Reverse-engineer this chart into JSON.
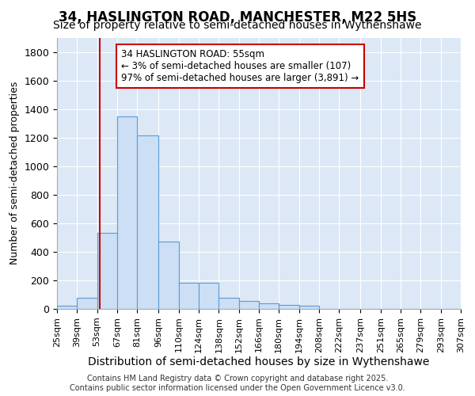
{
  "title": "34, HASLINGTON ROAD, MANCHESTER, M22 5HS",
  "subtitle": "Size of property relative to semi-detached houses in Wythenshawe",
  "xlabel": "Distribution of semi-detached houses by size in Wythenshawe",
  "ylabel": "Number of semi-detached properties",
  "footer_line1": "Contains HM Land Registry data © Crown copyright and database right 2025.",
  "footer_line2": "Contains public sector information licensed under the Open Government Licence v3.0.",
  "bin_edges": [
    25,
    39,
    53,
    67,
    81,
    96,
    110,
    124,
    138,
    152,
    166,
    180,
    194,
    208,
    222,
    237,
    251,
    265,
    279,
    293,
    307
  ],
  "bar_heights": [
    20,
    75,
    530,
    1350,
    1215,
    470,
    185,
    185,
    80,
    55,
    40,
    28,
    20,
    0,
    0,
    0,
    0,
    0,
    0,
    0
  ],
  "bar_color": "#ccdff5",
  "bar_edge_color": "#5b9bd5",
  "vline_x": 55,
  "vline_color": "#cc0000",
  "annotation_line1": "34 HASLINGTON ROAD: 55sqm",
  "annotation_line2": "← 3% of semi-detached houses are smaller (107)",
  "annotation_line3": "97% of semi-detached houses are larger (3,891) →",
  "ylim": [
    0,
    1900
  ],
  "fig_bg": "#ffffff",
  "plot_bg": "#dce8f5",
  "grid_color": "#ffffff",
  "title_fontsize": 12,
  "subtitle_fontsize": 10,
  "tick_fontsize": 8,
  "ylabel_fontsize": 9,
  "xlabel_fontsize": 10,
  "footer_fontsize": 7
}
